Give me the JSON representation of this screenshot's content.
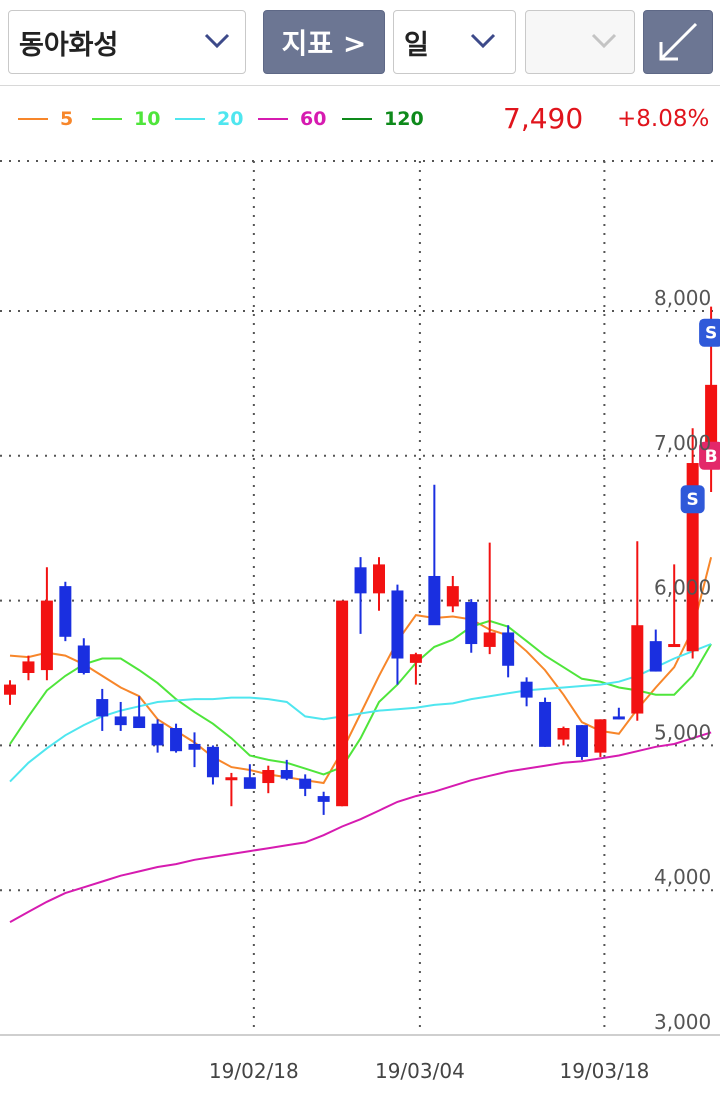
{
  "toolbar": {
    "stock_name": "동아화성",
    "indicator_label": "지표 >",
    "period_label": "일",
    "blank_value": ""
  },
  "legend": {
    "items": [
      {
        "label": "5",
        "color": "#f7862a"
      },
      {
        "label": "10",
        "color": "#4fe53b"
      },
      {
        "label": "20",
        "color": "#4fe6ef"
      },
      {
        "label": "60",
        "color": "#d61bb0"
      },
      {
        "label": "120",
        "color": "#0e8a1b"
      }
    ],
    "price": "7,490",
    "change": "+8.08%"
  },
  "colors": {
    "up": "#f21212",
    "down": "#1a2fe0",
    "accent": "#6c7693"
  },
  "chart_data": {
    "type": "candlestick",
    "y_ticks": [
      "8,000",
      "7,000",
      "6,000",
      "5,000",
      "4,000",
      "3,000"
    ],
    "ylim": [
      3000,
      8700
    ],
    "x_labels": [
      "19/02/18",
      "19/03/04",
      "19/03/18"
    ],
    "grid": true,
    "candles": [
      {
        "o": 5350,
        "h": 5450,
        "l": 5280,
        "c": 5420
      },
      {
        "o": 5500,
        "h": 5620,
        "l": 5450,
        "c": 5580
      },
      {
        "o": 5520,
        "h": 6230,
        "l": 5450,
        "c": 6000
      },
      {
        "o": 6100,
        "h": 6130,
        "l": 5720,
        "c": 5750
      },
      {
        "o": 5690,
        "h": 5740,
        "l": 5490,
        "c": 5500
      },
      {
        "o": 5320,
        "h": 5390,
        "l": 5100,
        "c": 5200
      },
      {
        "o": 5200,
        "h": 5300,
        "l": 5100,
        "c": 5140
      },
      {
        "o": 5200,
        "h": 5340,
        "l": 5120,
        "c": 5120
      },
      {
        "o": 5150,
        "h": 5180,
        "l": 4950,
        "c": 5000
      },
      {
        "o": 5120,
        "h": 5150,
        "l": 4950,
        "c": 4960
      },
      {
        "o": 5010,
        "h": 5090,
        "l": 4850,
        "c": 4970
      },
      {
        "o": 4990,
        "h": 5000,
        "l": 4730,
        "c": 4780
      },
      {
        "o": 4780,
        "h": 4810,
        "l": 4580,
        "c": 4780
      },
      {
        "o": 4780,
        "h": 4870,
        "l": 4720,
        "c": 4700
      },
      {
        "o": 4740,
        "h": 4860,
        "l": 4670,
        "c": 4830
      },
      {
        "o": 4830,
        "h": 4900,
        "l": 4760,
        "c": 4770
      },
      {
        "o": 4770,
        "h": 4800,
        "l": 4650,
        "c": 4700
      },
      {
        "o": 4650,
        "h": 4680,
        "l": 4520,
        "c": 4610
      },
      {
        "o": 4580,
        "h": 6000,
        "l": 4580,
        "c": 6000
      },
      {
        "o": 6230,
        "h": 6300,
        "l": 5770,
        "c": 6050
      },
      {
        "o": 6050,
        "h": 6300,
        "l": 5930,
        "c": 6250
      },
      {
        "o": 6070,
        "h": 6110,
        "l": 5420,
        "c": 5600
      },
      {
        "o": 5570,
        "h": 5640,
        "l": 5420,
        "c": 5630
      },
      {
        "o": 6170,
        "h": 6800,
        "l": 5840,
        "c": 5830
      },
      {
        "o": 5960,
        "h": 6170,
        "l": 5920,
        "c": 6100
      },
      {
        "o": 5990,
        "h": 6010,
        "l": 5640,
        "c": 5700
      },
      {
        "o": 5680,
        "h": 6400,
        "l": 5630,
        "c": 5780
      },
      {
        "o": 5780,
        "h": 5830,
        "l": 5470,
        "c": 5550
      },
      {
        "o": 5440,
        "h": 5470,
        "l": 5270,
        "c": 5330
      },
      {
        "o": 5300,
        "h": 5330,
        "l": 4990,
        "c": 4990
      },
      {
        "o": 5040,
        "h": 5130,
        "l": 5000,
        "c": 5120
      },
      {
        "o": 5140,
        "h": 5140,
        "l": 4900,
        "c": 4920
      },
      {
        "o": 4950,
        "h": 5180,
        "l": 4920,
        "c": 5180
      },
      {
        "o": 5200,
        "h": 5260,
        "l": 5180,
        "c": 5190
      },
      {
        "o": 5220,
        "h": 6410,
        "l": 5170,
        "c": 5830
      },
      {
        "o": 5720,
        "h": 5800,
        "l": 5510,
        "c": 5510
      },
      {
        "o": 5700,
        "h": 6250,
        "l": 5690,
        "c": 5700
      },
      {
        "o": 5650,
        "h": 7190,
        "l": 5600,
        "c": 6950
      },
      {
        "o": 6950,
        "h": 8030,
        "l": 6750,
        "c": 7490
      }
    ],
    "series": [
      {
        "name": "5",
        "values": [
          5620,
          5610,
          5640,
          5620,
          5560,
          5480,
          5400,
          5340,
          5180,
          5100,
          5020,
          4920,
          4850,
          4830,
          4800,
          4780,
          4760,
          4740,
          4960,
          5220,
          5480,
          5720,
          5900,
          5880,
          5890,
          5870,
          5800,
          5760,
          5650,
          5520,
          5350,
          5160,
          5100,
          5080,
          5250,
          5400,
          5540,
          5800,
          6300
        ]
      },
      {
        "name": "10",
        "values": [
          5010,
          5200,
          5380,
          5480,
          5560,
          5600,
          5600,
          5520,
          5430,
          5320,
          5230,
          5150,
          5050,
          4930,
          4900,
          4880,
          4840,
          4800,
          4850,
          5050,
          5300,
          5420,
          5570,
          5680,
          5730,
          5820,
          5860,
          5820,
          5720,
          5620,
          5540,
          5460,
          5440,
          5400,
          5380,
          5350,
          5350,
          5480,
          5700
        ]
      },
      {
        "name": "20",
        "values": [
          4750,
          4880,
          4980,
          5070,
          5140,
          5200,
          5240,
          5270,
          5300,
          5310,
          5320,
          5320,
          5330,
          5330,
          5320,
          5300,
          5200,
          5180,
          5200,
          5220,
          5240,
          5250,
          5260,
          5280,
          5290,
          5320,
          5340,
          5360,
          5380,
          5390,
          5400,
          5410,
          5420,
          5440,
          5480,
          5540,
          5600,
          5650,
          5700
        ]
      },
      {
        "name": "60",
        "values": [
          3780,
          3850,
          3920,
          3980,
          4020,
          4060,
          4100,
          4130,
          4160,
          4180,
          4210,
          4230,
          4250,
          4270,
          4290,
          4310,
          4330,
          4380,
          4440,
          4490,
          4550,
          4610,
          4650,
          4680,
          4720,
          4760,
          4790,
          4820,
          4840,
          4860,
          4880,
          4890,
          4910,
          4930,
          4960,
          4990,
          5010,
          5050,
          5090
        ]
      }
    ],
    "signals": [
      {
        "label": "S",
        "index": 37,
        "price": 6700,
        "color": "#2f59d9"
      },
      {
        "label": "B",
        "index": 38,
        "price": 7000,
        "color": "#e3286a"
      },
      {
        "label": "S",
        "index": 38,
        "price": 7850,
        "color": "#2f59d9"
      }
    ]
  }
}
